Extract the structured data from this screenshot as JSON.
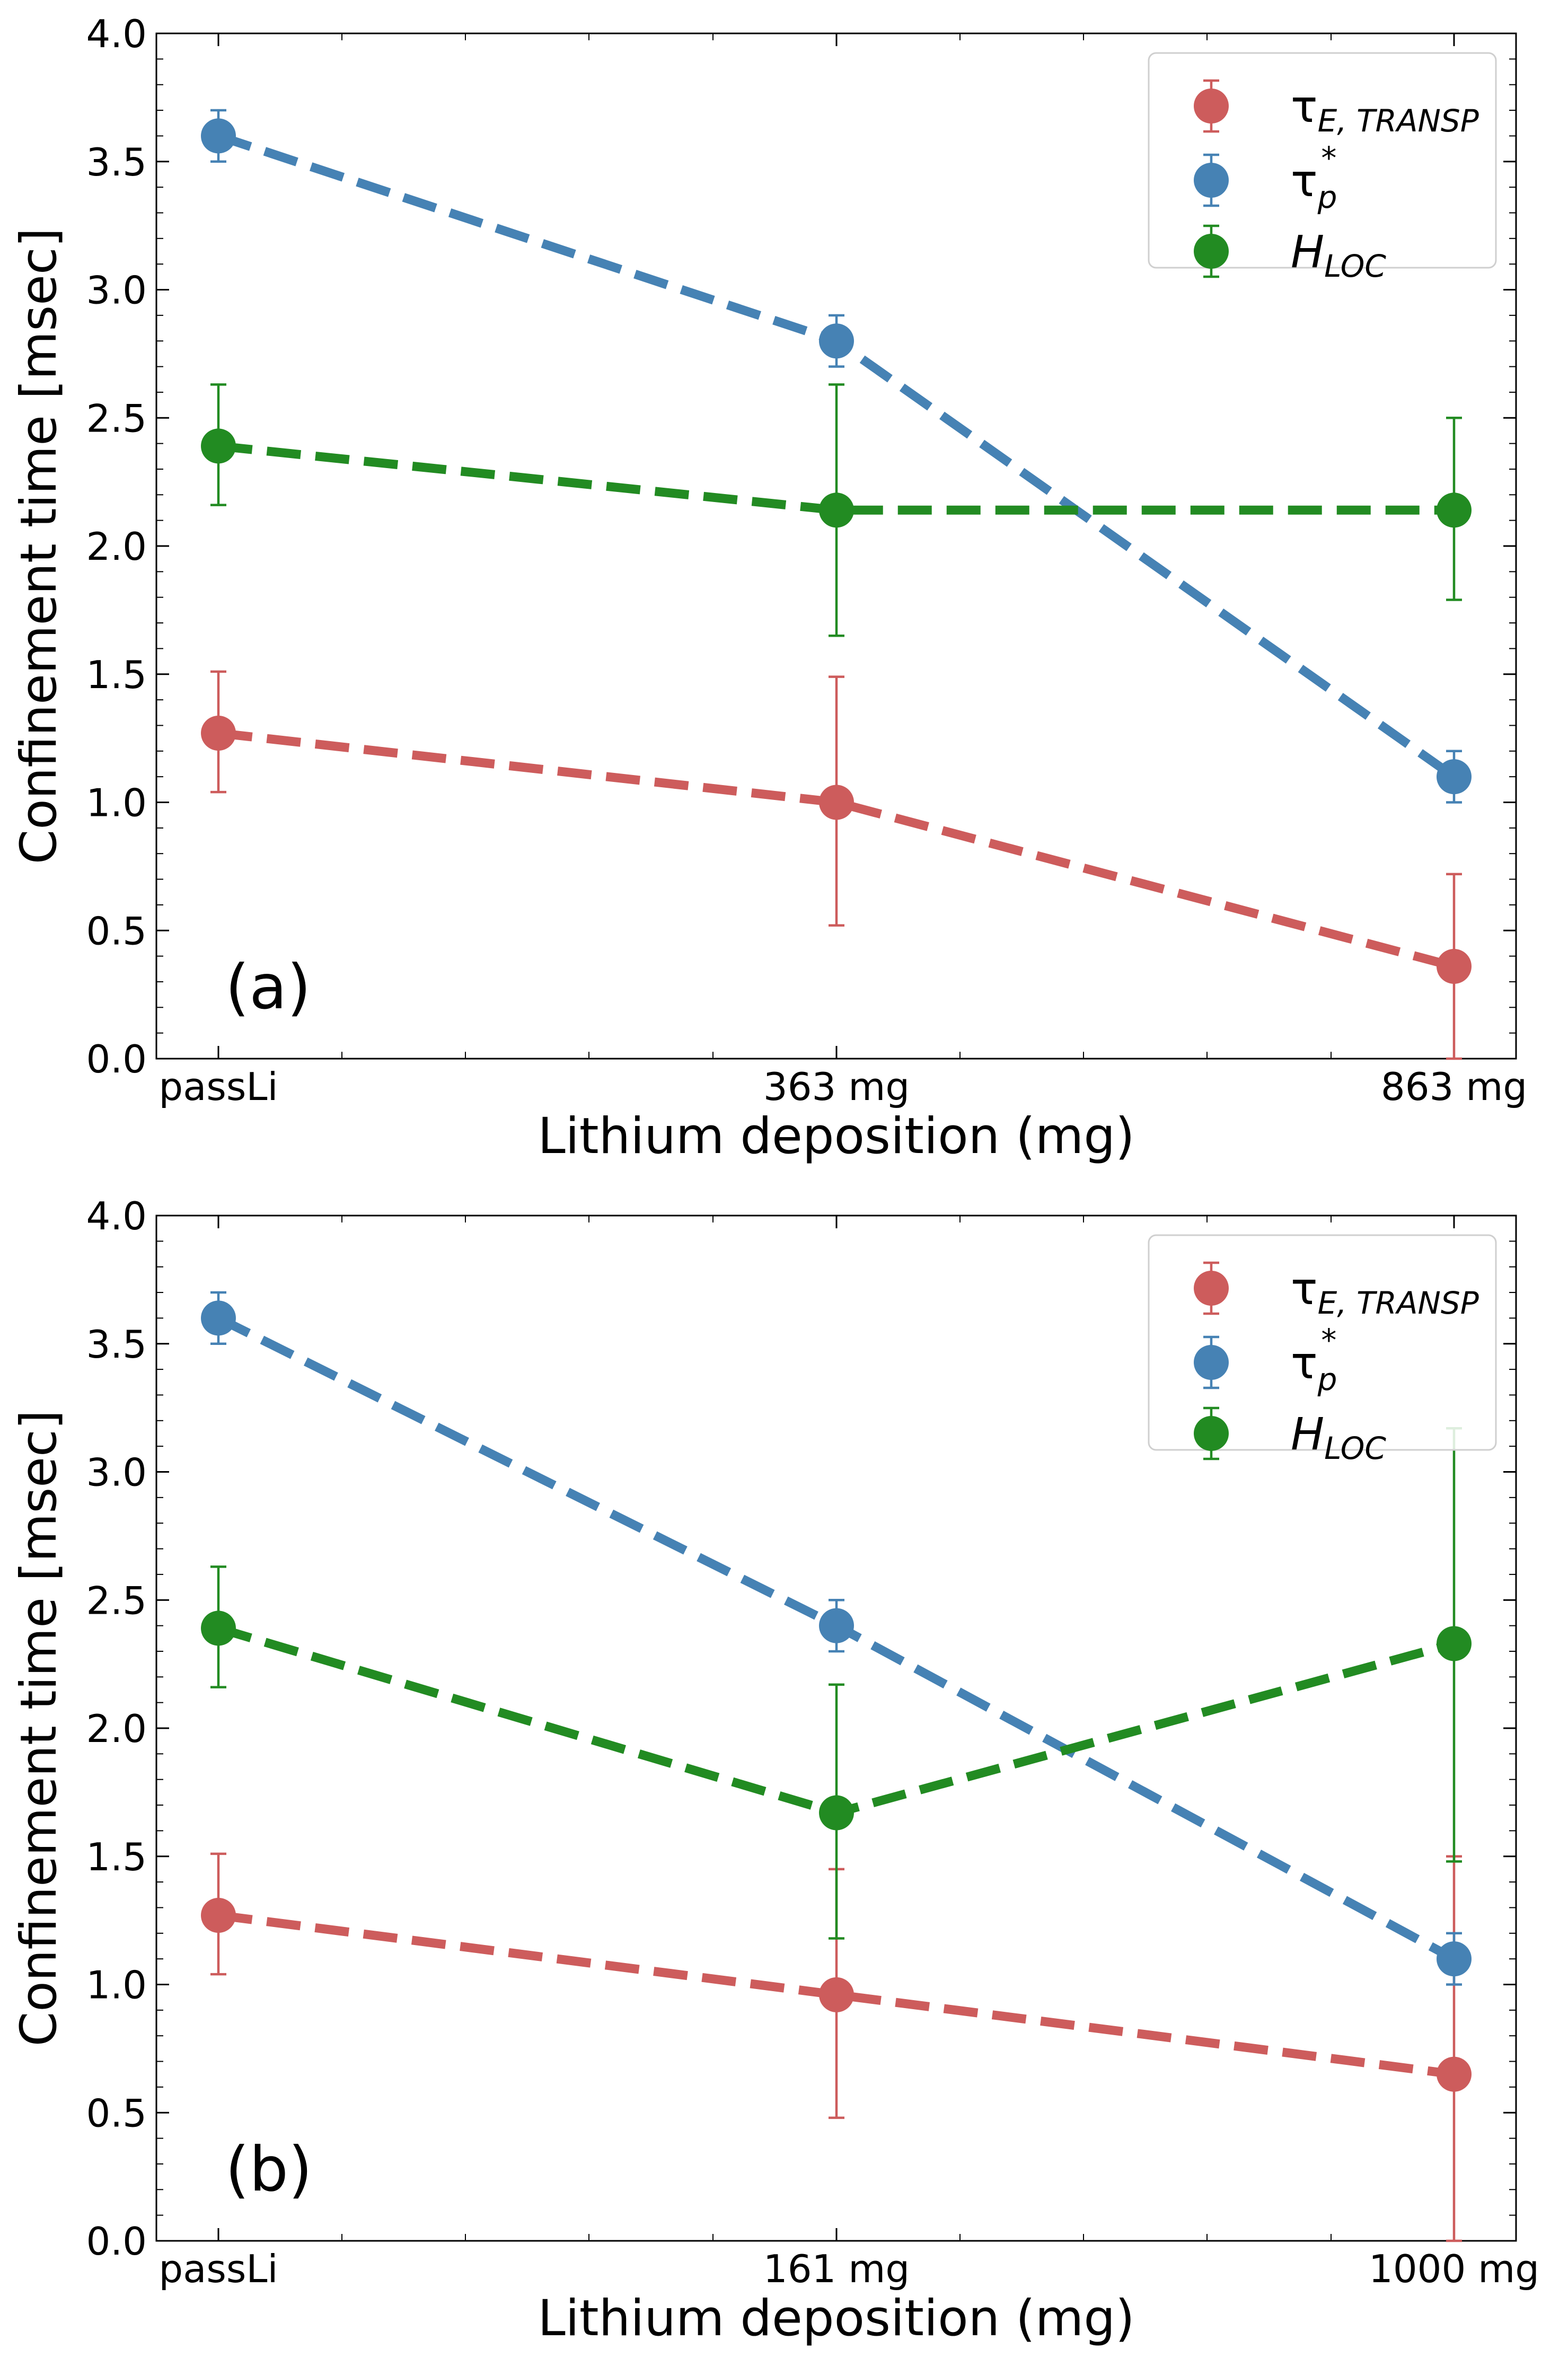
{
  "chart_data": [
    {
      "type": "line",
      "panel_label": "(a)",
      "categories": [
        "passLi",
        "363 mg",
        "863 mg"
      ],
      "x": [
        0,
        1,
        2
      ],
      "xlabel": "Lithium deposition (mg)",
      "ylabel": "Confinement time [msec]",
      "ylim": [
        0,
        4.0
      ],
      "yticks": [
        "0.0",
        "0.5",
        "1.0",
        "1.5",
        "2.0",
        "2.5",
        "3.0",
        "3.5",
        "4.0"
      ],
      "legend_position": "upper-right",
      "series": [
        {
          "name": "τE,TRANSP",
          "color": "#cd5c5c",
          "values": [
            1.27,
            1.0,
            0.36
          ],
          "err_lo": [
            1.04,
            0.52,
            0.0
          ],
          "err_hi": [
            1.51,
            1.49,
            0.72
          ]
        },
        {
          "name": "τp*",
          "color": "#4682b4",
          "values": [
            3.6,
            2.8,
            1.1
          ],
          "err_lo": [
            3.5,
            2.7,
            1.0
          ],
          "err_hi": [
            3.7,
            2.9,
            1.2
          ]
        },
        {
          "name": "HLOC",
          "color": "#228b22",
          "values": [
            2.39,
            2.14,
            2.14
          ],
          "err_lo": [
            2.16,
            1.65,
            1.79
          ],
          "err_hi": [
            2.63,
            2.63,
            2.5
          ]
        }
      ]
    },
    {
      "type": "line",
      "panel_label": "(b)",
      "categories": [
        "passLi",
        "161 mg",
        "1000 mg"
      ],
      "x": [
        0,
        1,
        2
      ],
      "xlabel": "Lithium deposition (mg)",
      "ylabel": "Confinement time [msec]",
      "ylim": [
        0,
        4.0
      ],
      "yticks": [
        "0.0",
        "0.5",
        "1.0",
        "1.5",
        "2.0",
        "2.5",
        "3.0",
        "3.5",
        "4.0"
      ],
      "legend_position": "upper-right",
      "series": [
        {
          "name": "τE,TRANSP",
          "color": "#cd5c5c",
          "values": [
            1.27,
            0.96,
            0.65
          ],
          "err_lo": [
            1.04,
            0.48,
            0.0
          ],
          "err_hi": [
            1.51,
            1.45,
            1.5
          ]
        },
        {
          "name": "τp*",
          "color": "#4682b4",
          "values": [
            3.6,
            2.4,
            1.1
          ],
          "err_lo": [
            3.5,
            2.3,
            1.0
          ],
          "err_hi": [
            3.7,
            2.5,
            1.2
          ]
        },
        {
          "name": "HLOC",
          "color": "#228b22",
          "values": [
            2.39,
            1.67,
            2.33
          ],
          "err_lo": [
            2.16,
            1.18,
            1.48
          ],
          "err_hi": [
            2.63,
            2.17,
            3.17
          ]
        }
      ]
    }
  ]
}
